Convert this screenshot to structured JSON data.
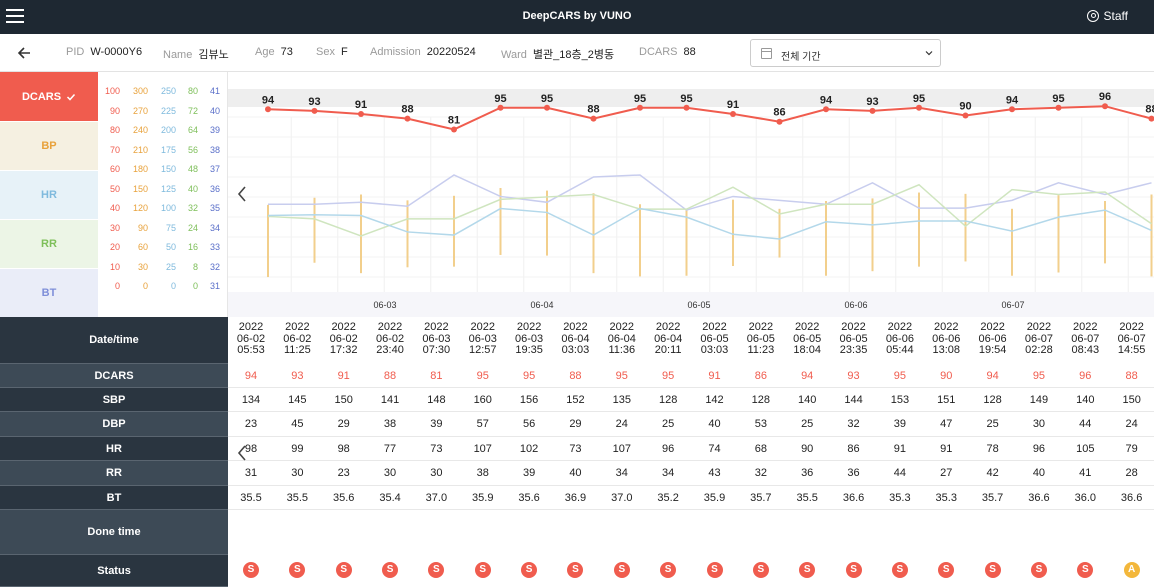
{
  "header": {
    "title": "DeepCARS by VUNO",
    "user_label": "Staff"
  },
  "patient": {
    "pid_label": "PID",
    "pid": "W-0000Y6",
    "name_label": "Name",
    "name": "김뷰노",
    "age_label": "Age",
    "age": "73",
    "sex_label": "Sex",
    "sex": "F",
    "admission_label": "Admission",
    "admission": "20220524",
    "ward_label": "Ward",
    "ward": "별관_18층_2병동",
    "dcars_label": "DCARS",
    "dcars": "88"
  },
  "period_select": {
    "value": "전체 기간"
  },
  "vitals_tabs": [
    {
      "label": "DCARS",
      "color": "#ffffff",
      "bg": "#f05c4e",
      "selected": true
    },
    {
      "label": "BP",
      "color": "#e8a23c",
      "bg": "#f5f0e1"
    },
    {
      "label": "HR",
      "color": "#7fbadd",
      "bg": "#e7f2f8"
    },
    {
      "label": "RR",
      "color": "#7ebf5a",
      "bg": "#ecf5e6"
    },
    {
      "label": "BT",
      "color": "#7f8fd9",
      "bg": "#eaedf8"
    }
  ],
  "scales": {
    "dcars": [
      "100",
      "90",
      "80",
      "70",
      "60",
      "50",
      "40",
      "30",
      "20",
      "10",
      "0"
    ],
    "bp": [
      "300",
      "270",
      "240",
      "210",
      "180",
      "150",
      "120",
      "90",
      "60",
      "30",
      "0"
    ],
    "hr": [
      "250",
      "225",
      "200",
      "175",
      "150",
      "125",
      "100",
      "75",
      "50",
      "25",
      "0"
    ],
    "rr": [
      "80",
      "72",
      "64",
      "56",
      "48",
      "40",
      "32",
      "24",
      "16",
      "8",
      "0"
    ],
    "bt": [
      "41",
      "40",
      "39",
      "38",
      "37",
      "36",
      "35",
      "34",
      "33",
      "32",
      "31"
    ],
    "colors": {
      "dcars": "#f05c4e",
      "bp": "#e8a23c",
      "hr": "#7fbadd",
      "rr": "#7ebf5a",
      "bt": "#5a6fc9"
    }
  },
  "chart_data": {
    "type": "line",
    "x_axis_labels": [
      "06-03",
      "06-04",
      "06-05",
      "06-06",
      "06-07"
    ],
    "series": [
      {
        "name": "DCARS",
        "values": [
          94,
          93,
          91,
          88,
          81,
          95,
          95,
          88,
          95,
          95,
          91,
          86,
          94,
          93,
          95,
          90,
          94,
          95,
          96,
          88
        ]
      },
      {
        "name": "SBP",
        "values": [
          134,
          145,
          150,
          141,
          148,
          160,
          156,
          152,
          135,
          128,
          142,
          128,
          140,
          144,
          153,
          151,
          128,
          149,
          140,
          150
        ]
      },
      {
        "name": "DBP",
        "values": [
          23,
          45,
          29,
          38,
          39,
          57,
          56,
          29,
          24,
          25,
          40,
          53,
          25,
          32,
          39,
          47,
          25,
          30,
          44,
          24
        ]
      },
      {
        "name": "HR",
        "values": [
          98,
          99,
          98,
          77,
          73,
          107,
          102,
          73,
          107,
          96,
          74,
          68,
          90,
          86,
          91,
          91,
          78,
          96,
          105,
          79
        ]
      },
      {
        "name": "RR",
        "values": [
          31,
          30,
          23,
          30,
          30,
          38,
          39,
          40,
          34,
          34,
          43,
          32,
          36,
          36,
          44,
          27,
          42,
          40,
          41,
          28
        ]
      },
      {
        "name": "BT",
        "values": [
          35.5,
          35.5,
          35.6,
          35.4,
          37.0,
          35.9,
          35.6,
          36.9,
          37.0,
          35.2,
          35.9,
          35.7,
          35.5,
          36.6,
          35.3,
          35.3,
          35.7,
          36.6,
          36.0,
          36.6
        ]
      }
    ]
  },
  "table": {
    "labels": {
      "datetime": "Date/time",
      "dcars": "DCARS",
      "sbp": "SBP",
      "dbp": "DBP",
      "hr": "HR",
      "rr": "RR",
      "bt": "BT",
      "done": "Done time",
      "status": "Status"
    },
    "datetimes": [
      [
        "2022",
        "06-02",
        "05:53"
      ],
      [
        "2022",
        "06-02",
        "11:25"
      ],
      [
        "2022",
        "06-02",
        "17:32"
      ],
      [
        "2022",
        "06-02",
        "23:40"
      ],
      [
        "2022",
        "06-03",
        "07:30"
      ],
      [
        "2022",
        "06-03",
        "12:57"
      ],
      [
        "2022",
        "06-03",
        "19:35"
      ],
      [
        "2022",
        "06-04",
        "03:03"
      ],
      [
        "2022",
        "06-04",
        "11:36"
      ],
      [
        "2022",
        "06-04",
        "20:11"
      ],
      [
        "2022",
        "06-05",
        "03:03"
      ],
      [
        "2022",
        "06-05",
        "11:23"
      ],
      [
        "2022",
        "06-05",
        "18:04"
      ],
      [
        "2022",
        "06-05",
        "23:35"
      ],
      [
        "2022",
        "06-06",
        "05:44"
      ],
      [
        "2022",
        "06-06",
        "13:08"
      ],
      [
        "2022",
        "06-06",
        "19:54"
      ],
      [
        "2022",
        "06-07",
        "02:28"
      ],
      [
        "2022",
        "06-07",
        "08:43"
      ],
      [
        "2022",
        "06-07",
        "14:55"
      ]
    ],
    "dcars": [
      "94",
      "93",
      "91",
      "88",
      "81",
      "95",
      "95",
      "88",
      "95",
      "95",
      "91",
      "86",
      "94",
      "93",
      "95",
      "90",
      "94",
      "95",
      "96",
      "88"
    ],
    "sbp": [
      "134",
      "145",
      "150",
      "141",
      "148",
      "160",
      "156",
      "152",
      "135",
      "128",
      "142",
      "128",
      "140",
      "144",
      "153",
      "151",
      "128",
      "149",
      "140",
      "150"
    ],
    "dbp": [
      "23",
      "45",
      "29",
      "38",
      "39",
      "57",
      "56",
      "29",
      "24",
      "25",
      "40",
      "53",
      "25",
      "32",
      "39",
      "47",
      "25",
      "30",
      "44",
      "24"
    ],
    "hr": [
      "98",
      "99",
      "98",
      "77",
      "73",
      "107",
      "102",
      "73",
      "107",
      "96",
      "74",
      "68",
      "90",
      "86",
      "91",
      "91",
      "78",
      "96",
      "105",
      "79"
    ],
    "rr": [
      "31",
      "30",
      "23",
      "30",
      "30",
      "38",
      "39",
      "40",
      "34",
      "34",
      "43",
      "32",
      "36",
      "36",
      "44",
      "27",
      "42",
      "40",
      "41",
      "28"
    ],
    "bt": [
      "35.5",
      "35.5",
      "35.6",
      "35.4",
      "37.0",
      "35.9",
      "35.6",
      "36.9",
      "37.0",
      "35.2",
      "35.9",
      "35.7",
      "35.5",
      "36.6",
      "35.3",
      "35.3",
      "35.7",
      "36.6",
      "36.0",
      "36.6"
    ],
    "status": [
      "S",
      "S",
      "S",
      "S",
      "S",
      "S",
      "S",
      "S",
      "S",
      "S",
      "S",
      "S",
      "S",
      "S",
      "S",
      "S",
      "S",
      "S",
      "S",
      "A"
    ],
    "status_colors": {
      "S": "#f05c4e",
      "A": "#f3b73b"
    }
  }
}
